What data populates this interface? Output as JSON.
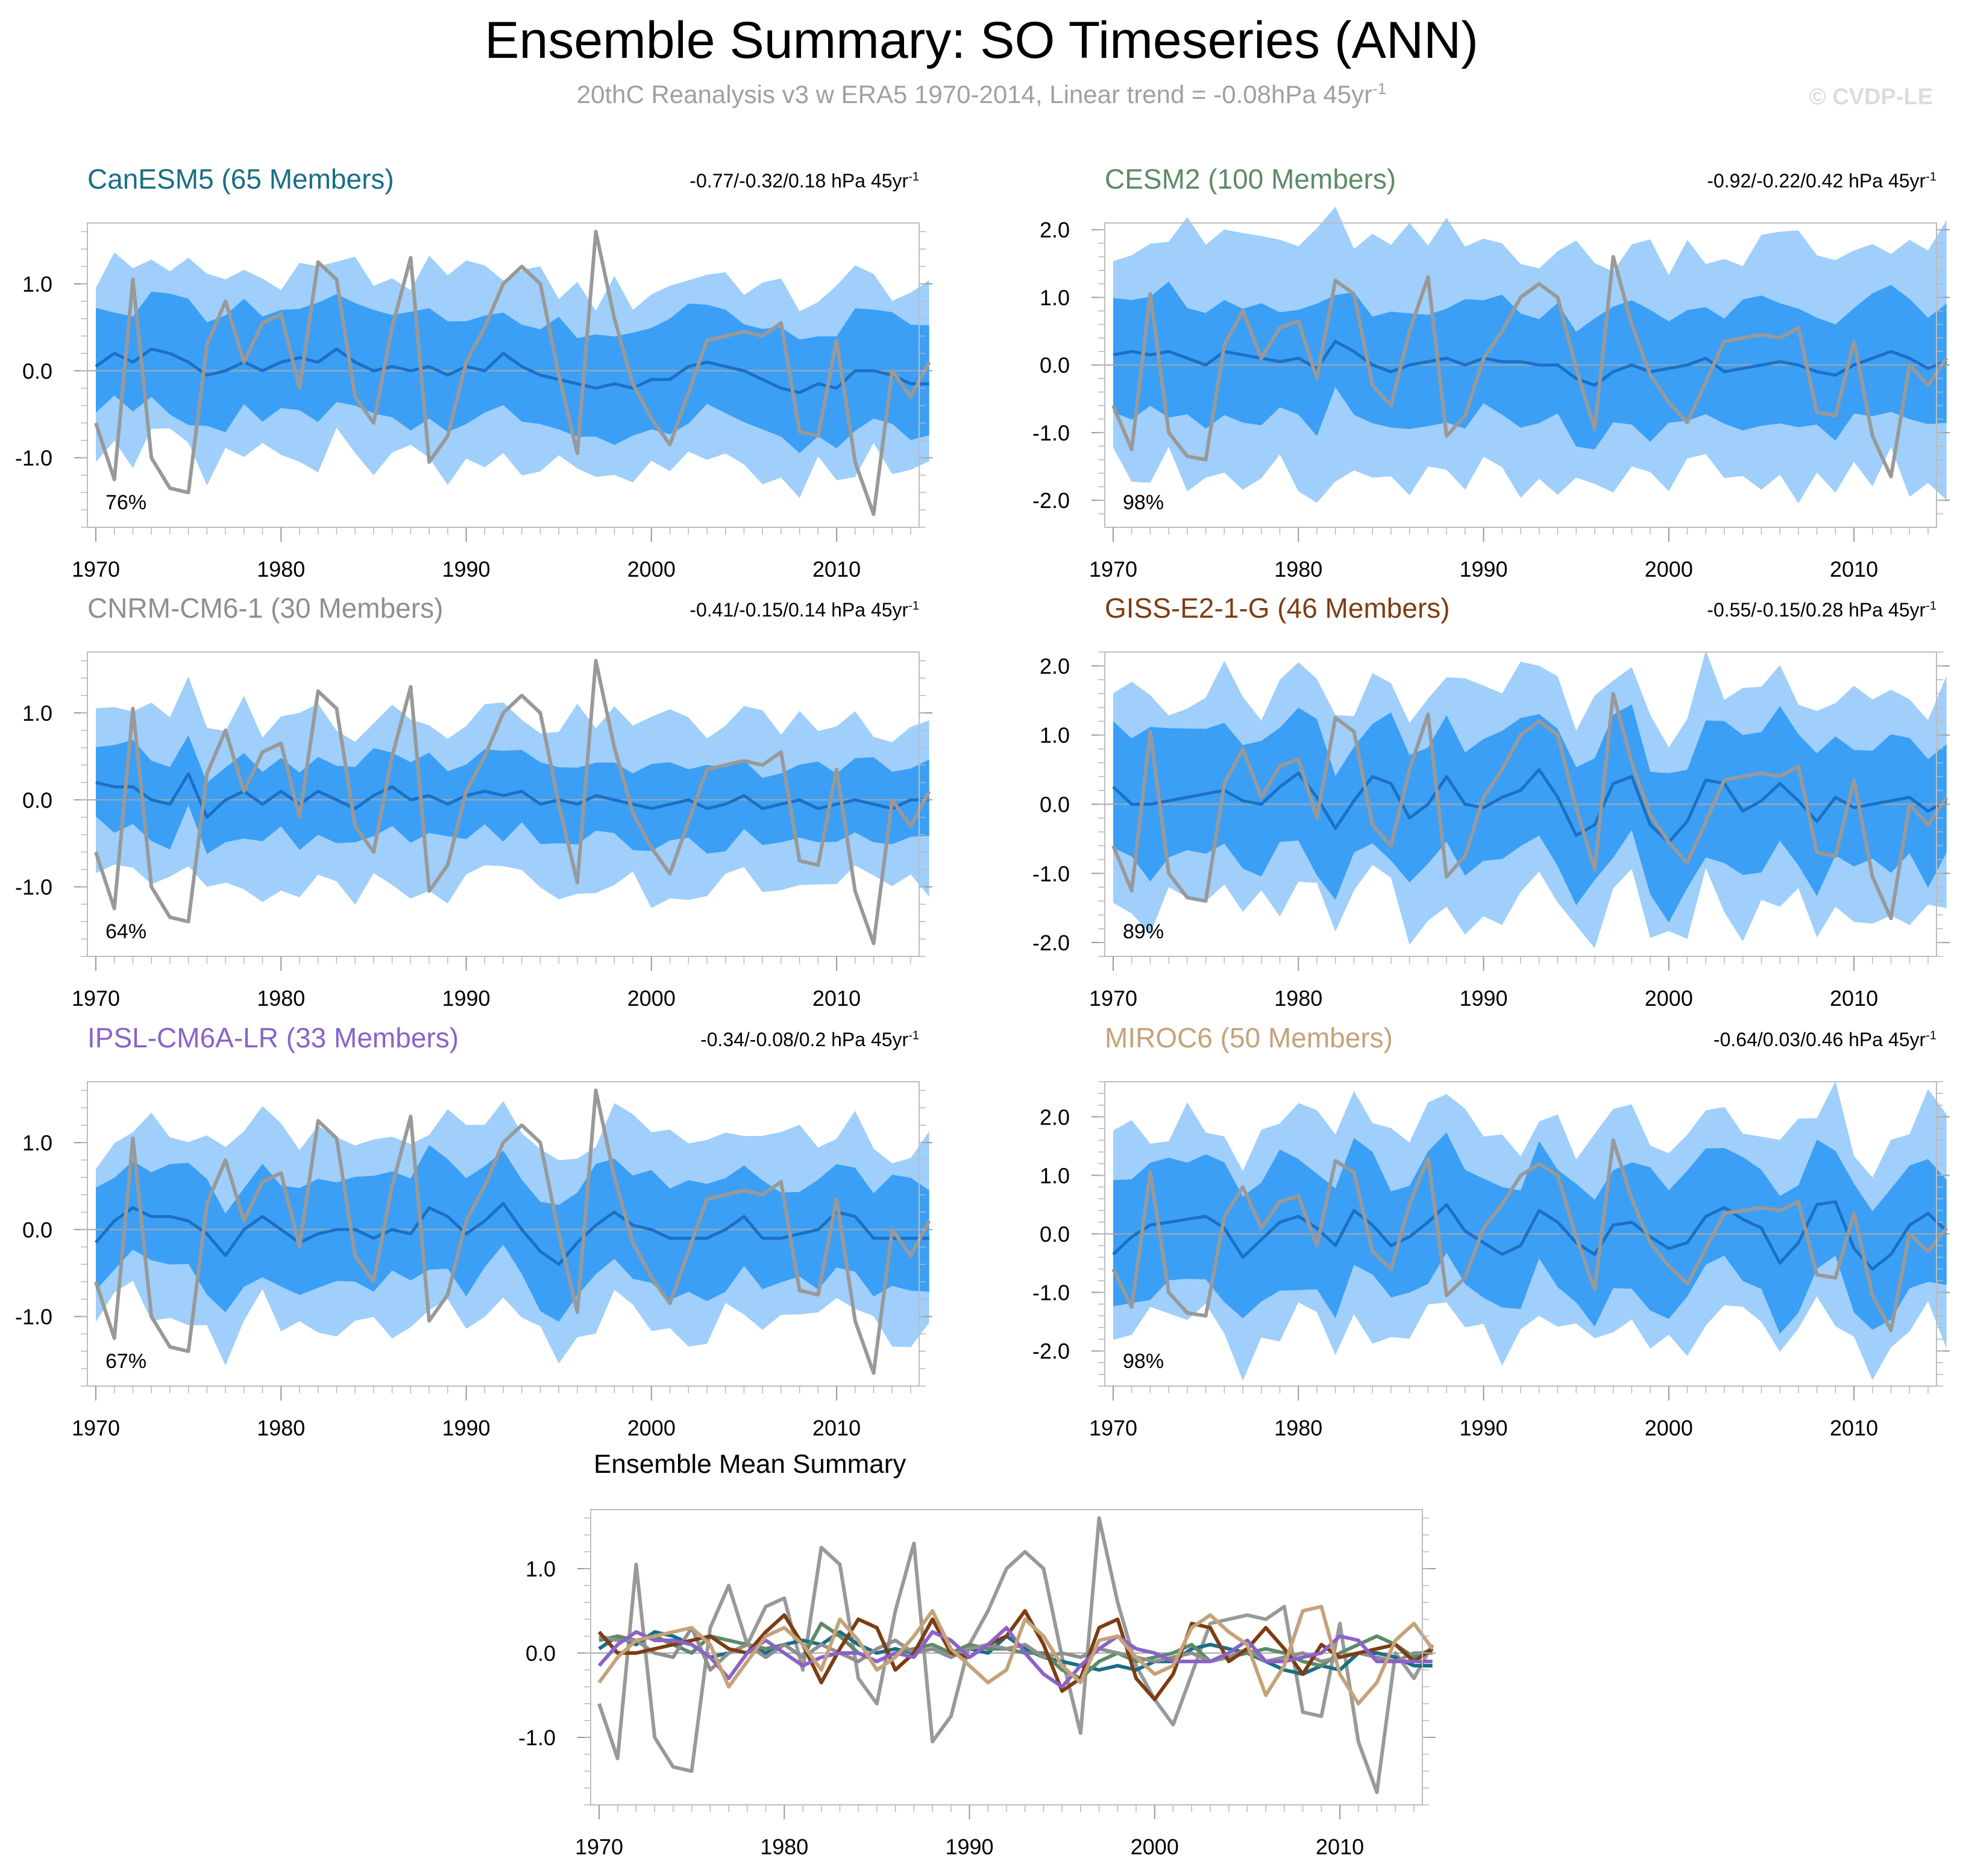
{
  "header": {
    "title": "Ensemble Summary: SO Timeseries (ANN)",
    "subtitle_main": "20thC Reanalysis v3 w ERA5 1970-2014, Linear trend = -0.08hPa 45yr",
    "subtitle_sup": "-1",
    "watermark": "© CVDP-LE"
  },
  "colors": {
    "outer_band": "#9fcffa",
    "inner_band": "#3b9ff5",
    "ensemble_mean": "#1c70c4",
    "observations": "#999999",
    "zero_line": "#a8a8a8"
  },
  "chart_data": {
    "type": "line",
    "x_start": 1970,
    "x_end": 2014,
    "xlim": [
      1970,
      2014
    ],
    "x_ticks": [
      1970,
      1980,
      1990,
      2000,
      2010
    ],
    "observations": {
      "values": [
        -0.6,
        -1.25,
        1.05,
        -1.0,
        -1.35,
        -1.4,
        0.3,
        0.8,
        0.1,
        0.55,
        0.65,
        -0.2,
        1.25,
        1.05,
        -0.3,
        -0.6,
        0.5,
        1.3,
        -1.05,
        -0.75,
        0.1,
        0.5,
        1.0,
        1.2,
        1.0,
        -0.05,
        -0.95,
        1.6,
        0.6,
        -0.15,
        -0.55,
        -0.85,
        -0.25,
        0.35,
        0.4,
        0.45,
        0.4,
        0.55,
        -0.7,
        -0.75,
        0.35,
        -1.05,
        -1.65,
        0.0,
        -0.3,
        0.1
      ]
    },
    "panels": [
      {
        "title": "CanESM5 (65 Members)",
        "color": "#1a6e86",
        "trend_text": "-0.77/-0.32/0.18 hPa 45yr",
        "percent_label": "76%",
        "ylim": [
          -1.8,
          1.7
        ],
        "y_ticks": [
          1.0,
          0.0,
          -1.0
        ],
        "y_tick_labels": [
          "1.0",
          "0.0",
          "-1.0"
        ],
        "mean": [
          0.05,
          0.2,
          0.1,
          0.25,
          0.2,
          0.1,
          -0.05,
          0.0,
          0.1,
          0.0,
          0.1,
          0.15,
          0.1,
          0.25,
          0.1,
          0.0,
          0.05,
          0.0,
          0.05,
          -0.05,
          0.05,
          0.0,
          0.2,
          0.05,
          -0.05,
          -0.1,
          -0.15,
          -0.2,
          -0.15,
          -0.2,
          -0.1,
          -0.1,
          0.05,
          0.1,
          0.05,
          0.0,
          -0.1,
          -0.2,
          -0.25,
          -0.15,
          -0.2,
          0.0,
          0.0,
          -0.05,
          -0.15,
          -0.15
        ],
        "inner_spread": 0.6,
        "outer_spread": 1.05
      },
      {
        "title": "CESM2 (100 Members)",
        "color": "#5d8a66",
        "trend_text": "-0.92/-0.22/0.42 hPa 45yr",
        "percent_label": "98%",
        "ylim": [
          -2.4,
          2.1
        ],
        "y_ticks": [
          2.0,
          1.0,
          0.0,
          -1.0,
          -2.0
        ],
        "y_tick_labels": [
          "2.0",
          "1.0",
          "0.0",
          "-1.0",
          "-2.0"
        ],
        "mean": [
          0.15,
          0.2,
          0.15,
          0.2,
          0.1,
          0.0,
          0.2,
          0.15,
          0.1,
          0.05,
          0.1,
          -0.05,
          0.35,
          0.2,
          0.0,
          -0.1,
          0.0,
          0.05,
          0.1,
          0.0,
          0.1,
          0.05,
          0.05,
          0.0,
          0.0,
          -0.2,
          -0.3,
          -0.1,
          0.0,
          -0.1,
          -0.05,
          0.0,
          0.1,
          -0.1,
          -0.05,
          0.0,
          0.05,
          0.0,
          -0.1,
          -0.15,
          0.0,
          0.1,
          0.2,
          0.1,
          -0.05,
          0.05
        ],
        "inner_spread": 0.85,
        "outer_spread": 1.75
      },
      {
        "title": "CNRM-CM6-1 (30 Members)",
        "color": "#8f8f8f",
        "trend_text": "-0.41/-0.15/0.14 hPa 45yr",
        "percent_label": "64%",
        "ylim": [
          -1.8,
          1.7
        ],
        "y_ticks": [
          1.0,
          0.0,
          -1.0
        ],
        "y_tick_labels": [
          "1.0",
          "0.0",
          "-1.0"
        ],
        "mean": [
          0.2,
          0.15,
          0.15,
          0.0,
          -0.05,
          0.3,
          -0.2,
          0.0,
          0.1,
          -0.05,
          0.1,
          -0.05,
          0.1,
          0.0,
          -0.1,
          0.05,
          0.15,
          0.0,
          0.05,
          -0.05,
          0.05,
          0.1,
          0.05,
          0.1,
          -0.05,
          0.0,
          -0.05,
          0.05,
          0.0,
          -0.05,
          -0.1,
          -0.05,
          0.0,
          -0.1,
          -0.05,
          0.05,
          -0.1,
          -0.05,
          0.0,
          -0.1,
          -0.05,
          0.0,
          -0.05,
          -0.1,
          0.0,
          0.0
        ],
        "inner_spread": 0.45,
        "outer_spread": 0.95
      },
      {
        "title": "GISS-E2-1-G (46 Members)",
        "color": "#7e3c13",
        "trend_text": "-0.55/-0.15/0.28 hPa 45yr",
        "percent_label": "89%",
        "ylim": [
          -2.2,
          2.2
        ],
        "y_ticks": [
          2.0,
          1.0,
          0.0,
          -1.0,
          -2.0
        ],
        "y_tick_labels": [
          "2.0",
          "1.0",
          "0.0",
          "-1.0",
          "-2.0"
        ],
        "mean": [
          0.25,
          0.0,
          0.0,
          0.05,
          0.1,
          0.15,
          0.2,
          0.05,
          0.0,
          0.25,
          0.45,
          0.1,
          -0.35,
          0.05,
          0.4,
          0.3,
          -0.2,
          0.0,
          0.4,
          0.0,
          -0.05,
          0.1,
          0.2,
          0.5,
          0.1,
          -0.45,
          -0.3,
          0.3,
          0.4,
          -0.3,
          -0.55,
          -0.25,
          0.35,
          0.3,
          -0.1,
          0.05,
          0.3,
          0.05,
          -0.25,
          0.1,
          -0.05,
          0.0,
          0.05,
          0.1,
          -0.1,
          0.05
        ],
        "inner_spread": 0.95,
        "outer_spread": 1.55
      },
      {
        "title": "IPSL-CM6A-LR (33 Members)",
        "color": "#8b62c9",
        "trend_text": "-0.34/-0.08/0.2 hPa 45yr",
        "percent_label": "67%",
        "ylim": [
          -1.8,
          1.7
        ],
        "y_ticks": [
          1.0,
          0.0,
          -1.0
        ],
        "y_tick_labels": [
          "1.0",
          "0.0",
          "-1.0"
        ],
        "mean": [
          -0.15,
          0.1,
          0.25,
          0.15,
          0.15,
          0.1,
          -0.05,
          -0.3,
          0.0,
          0.15,
          0.0,
          -0.15,
          -0.05,
          0.0,
          0.0,
          -0.1,
          0.0,
          -0.05,
          0.25,
          0.15,
          -0.05,
          0.1,
          0.3,
          0.0,
          -0.25,
          -0.4,
          -0.15,
          0.05,
          0.2,
          0.05,
          0.0,
          -0.1,
          -0.1,
          -0.1,
          0.0,
          0.15,
          -0.1,
          -0.1,
          -0.05,
          0.0,
          0.2,
          0.15,
          -0.1,
          -0.1,
          -0.1,
          -0.1
        ],
        "inner_spread": 0.6,
        "outer_spread": 1.05
      },
      {
        "title": "MIROC6 (50 Members)",
        "color": "#c5a279",
        "trend_text": "-0.64/0.03/0.46 hPa 45yr",
        "percent_label": "98%",
        "ylim": [
          -2.6,
          2.6
        ],
        "y_ticks": [
          2.0,
          1.0,
          0.0,
          -1.0,
          -2.0
        ],
        "y_tick_labels": [
          "2.0",
          "1.0",
          "0.0",
          "-1.0",
          "-2.0"
        ],
        "mean": [
          -0.35,
          -0.05,
          0.15,
          0.2,
          0.25,
          0.3,
          0.1,
          -0.4,
          -0.1,
          0.2,
          0.3,
          0.1,
          -0.2,
          0.4,
          0.15,
          -0.2,
          -0.05,
          0.2,
          0.5,
          0.05,
          -0.15,
          -0.35,
          -0.2,
          0.4,
          0.2,
          -0.15,
          -0.35,
          0.15,
          0.2,
          -0.05,
          -0.25,
          -0.15,
          0.3,
          0.45,
          0.25,
          0.1,
          -0.5,
          -0.15,
          0.5,
          0.55,
          -0.25,
          -0.6,
          -0.35,
          0.15,
          0.35,
          0.05
        ],
        "inner_spread": 1.05,
        "outer_spread": 1.75
      }
    ],
    "summary": {
      "title": "Ensemble Mean Summary",
      "ylim": [
        -1.8,
        1.7
      ],
      "y_ticks": [
        1.0,
        0.0,
        -1.0
      ],
      "y_tick_labels": [
        "1.0",
        "0.0",
        "-1.0"
      ]
    }
  }
}
